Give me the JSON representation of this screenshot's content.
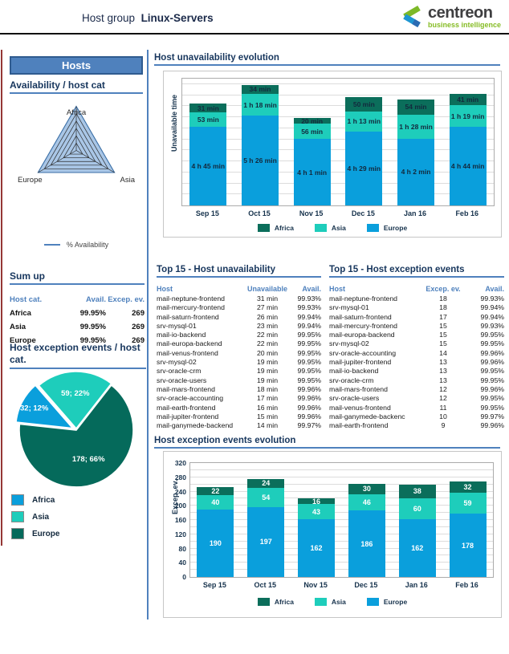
{
  "header": {
    "title_prefix": "Host group",
    "title_bold": "Linux-Servers",
    "logo_text": "centreon",
    "logo_subtitle": "business intelligence"
  },
  "colors": {
    "accent": "#4F81BD",
    "accent_dark": "#2F5B8F",
    "title_text": "#17365D",
    "left_edge": "#953735",
    "logo_green": "#86BC25",
    "logo_blue": "#1E96D2",
    "bar_africa": "#0B6E5B",
    "bar_asia": "#1ECDBB",
    "bar_europe": "#0A9FDC",
    "pie_africa": "#0A9FDC",
    "pie_asia": "#1ECDBB",
    "pie_europe": "#056A5B",
    "radar_fill": "#A9C6E6"
  },
  "sidebar": {
    "banner": "Hosts",
    "availability_title": "Availability / host cat",
    "radar_legend": "% Availability",
    "sumup": {
      "title": "Sum up",
      "headers": [
        "Host cat.",
        "Avail.",
        "Excep. ev."
      ],
      "rows": [
        [
          "Africa",
          "99.95%",
          "269"
        ],
        [
          "Asia",
          "99.95%",
          "269"
        ],
        [
          "Europe",
          "99.95%",
          "269"
        ]
      ]
    },
    "pie_title": "Host exception events / host cat."
  },
  "main": {
    "chart1_title": "Host unavailability evolution",
    "chart1_ylabel": "Unavailable time",
    "chart2_title": "Host exception events evolution",
    "chart2_ylabel": "Excep. ev.",
    "table1": {
      "title": "Top 15 - Host unavailability",
      "headers": [
        "Host",
        "Unavailable",
        "Avail."
      ],
      "rows": [
        [
          "mail-neptune-frontend",
          "31 min",
          "99.93%"
        ],
        [
          "mail-mercury-frontend",
          "27 min",
          "99.93%"
        ],
        [
          "mail-saturn-frontend",
          "26 min",
          "99.94%"
        ],
        [
          "srv-mysql-01",
          "23 min",
          "99.94%"
        ],
        [
          "mail-io-backend",
          "22 min",
          "99.95%"
        ],
        [
          "mail-europa-backend",
          "22 min",
          "99.95%"
        ],
        [
          "mail-venus-frontend",
          "20 min",
          "99.95%"
        ],
        [
          "srv-mysql-02",
          "19 min",
          "99.95%"
        ],
        [
          "srv-oracle-crm",
          "19 min",
          "99.95%"
        ],
        [
          "srv-oracle-users",
          "19 min",
          "99.95%"
        ],
        [
          "mail-mars-frontend",
          "18 min",
          "99.96%"
        ],
        [
          "srv-oracle-accounting",
          "17 min",
          "99.96%"
        ],
        [
          "mail-earth-frontend",
          "16 min",
          "99.96%"
        ],
        [
          "mail-jupiter-frontend",
          "15 min",
          "99.96%"
        ],
        [
          "mail-ganymede-backend",
          "14 min",
          "99.97%"
        ]
      ]
    },
    "table2": {
      "title": "Top 15 - Host exception events",
      "headers": [
        "Host",
        "Excep. ev.",
        "Avail."
      ],
      "rows": [
        [
          "mail-neptune-frontend",
          "18",
          "99.93%"
        ],
        [
          "srv-mysql-01",
          "18",
          "99.94%"
        ],
        [
          "mail-saturn-frontend",
          "17",
          "99.94%"
        ],
        [
          "mail-mercury-frontend",
          "15",
          "99.93%"
        ],
        [
          "mail-europa-backend",
          "15",
          "99.95%"
        ],
        [
          "srv-mysql-02",
          "15",
          "99.95%"
        ],
        [
          "srv-oracle-accounting",
          "14",
          "99.96%"
        ],
        [
          "mail-jupiter-frontend",
          "13",
          "99.96%"
        ],
        [
          "mail-io-backend",
          "13",
          "99.95%"
        ],
        [
          "srv-oracle-crm",
          "13",
          "99.95%"
        ],
        [
          "mail-mars-frontend",
          "12",
          "99.96%"
        ],
        [
          "srv-oracle-users",
          "12",
          "99.95%"
        ],
        [
          "mail-venus-frontend",
          "11",
          "99.95%"
        ],
        [
          "mail-ganymede-backenc",
          "10",
          "99.97%"
        ],
        [
          "mail-earth-frontend",
          "9",
          "99.96%"
        ]
      ]
    }
  },
  "chart_data": [
    {
      "id": "availability-radar",
      "type": "radar",
      "title": "Availability / host cat",
      "categories": [
        "Africa",
        "Asia",
        "Europe"
      ],
      "series": [
        {
          "name": "% Availability",
          "values": [
            99.95,
            99.95,
            99.95
          ]
        }
      ],
      "levels": 6
    },
    {
      "id": "unavailability-evolution",
      "type": "bar",
      "stacked": true,
      "title": "Host unavailability evolution",
      "ylabel": "Unavailable time",
      "unit": "minutes",
      "ylim": [
        0,
        460
      ],
      "grid_step": 40,
      "legend_position": "bottom",
      "categories": [
        "Sep 15",
        "Oct 15",
        "Nov 15",
        "Dec 15",
        "Jan 16",
        "Feb 16"
      ],
      "series": [
        {
          "name": "Africa",
          "values": [
            31,
            34,
            20,
            50,
            54,
            41
          ],
          "labels": [
            "31 min",
            "34 min",
            "20 min",
            "50 min",
            "54 min",
            "41 min"
          ]
        },
        {
          "name": "Asia",
          "values": [
            53,
            78,
            56,
            73,
            88,
            79
          ],
          "labels": [
            "53 min",
            "1 h 18 min",
            "56 min",
            "1 h 13 min",
            "1 h 28 min",
            "1 h 19 min"
          ]
        },
        {
          "name": "Europe",
          "values": [
            285,
            326,
            241,
            269,
            242,
            284
          ],
          "labels": [
            "4 h 45 min",
            "5 h 26 min",
            "4 h 1 min",
            "4 h 29 min",
            "4 h 2 min",
            "4 h 44 min"
          ]
        }
      ],
      "colors": {
        "Africa": "#0B6E5B",
        "Asia": "#1ECDBB",
        "Europe": "#0A9FDC"
      }
    },
    {
      "id": "exception-events-pie",
      "type": "pie",
      "title": "Host exception events / host cat.",
      "start_angle": -41,
      "slices": [
        {
          "name": "Asia",
          "value": 59,
          "percent": 22,
          "label": "59; 22%"
        },
        {
          "name": "Europe",
          "value": 178,
          "percent": 66,
          "label": "178; 66%"
        },
        {
          "name": "Africa",
          "value": 32,
          "percent": 12,
          "label": "32; 12%"
        }
      ],
      "legend_order": [
        "Africa",
        "Asia",
        "Europe"
      ],
      "colors": {
        "Africa": "#0A9FDC",
        "Asia": "#1ECDBB",
        "Europe": "#056A5B"
      }
    },
    {
      "id": "exception-events-evolution",
      "type": "bar",
      "stacked": true,
      "title": "Host exception events evolution",
      "ylabel": "Excep. ev.",
      "ylim": [
        0,
        320
      ],
      "grid_step": 20,
      "yticks": [
        0,
        40,
        80,
        120,
        160,
        200,
        240,
        280,
        320
      ],
      "legend_position": "bottom",
      "categories": [
        "Sep 15",
        "Oct 15",
        "Nov 15",
        "Dec 15",
        "Jan 16",
        "Feb 16"
      ],
      "series": [
        {
          "name": "Africa",
          "values": [
            22,
            24,
            16,
            30,
            38,
            32
          ]
        },
        {
          "name": "Asia",
          "values": [
            40,
            54,
            43,
            46,
            60,
            59
          ]
        },
        {
          "name": "Europe",
          "values": [
            190,
            197,
            162,
            186,
            162,
            178
          ]
        }
      ],
      "colors": {
        "Africa": "#0B6E5B",
        "Asia": "#1ECDBB",
        "Europe": "#0A9FDC"
      }
    }
  ]
}
